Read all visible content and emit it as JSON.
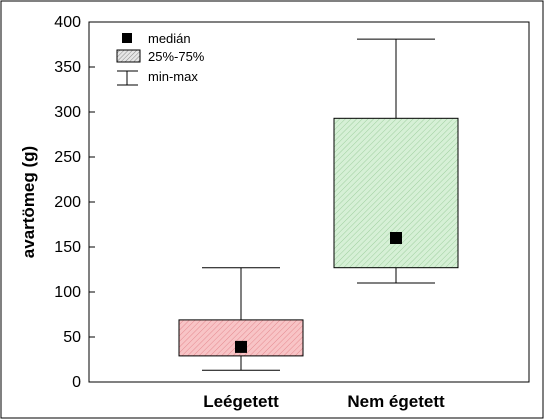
{
  "chart_data": {
    "type": "boxplot",
    "title": "",
    "xlabel": "",
    "ylabel": "avartömeg (g)",
    "ylim": [
      0,
      400
    ],
    "yticks": [
      0,
      50,
      100,
      150,
      200,
      250,
      300,
      350,
      400
    ],
    "grid": false,
    "legend_position": "top-left",
    "categories": [
      "Leégetett",
      "Nem égetett"
    ],
    "boxes": [
      {
        "category": "Leégetett",
        "min": 13,
        "q1": 29,
        "median": 39,
        "q3": 69,
        "max": 127,
        "fill": "#f4b0b4"
      },
      {
        "category": "Nem égetett",
        "min": 110,
        "q1": 127,
        "median": 160,
        "q3": 293,
        "max": 381,
        "fill": "#c6e8c6"
      }
    ],
    "legend": [
      {
        "symbol": "square",
        "label": "medián"
      },
      {
        "symbol": "hatched-box",
        "label": "25%-75%"
      },
      {
        "symbol": "whisker",
        "label": "min-max"
      }
    ]
  }
}
